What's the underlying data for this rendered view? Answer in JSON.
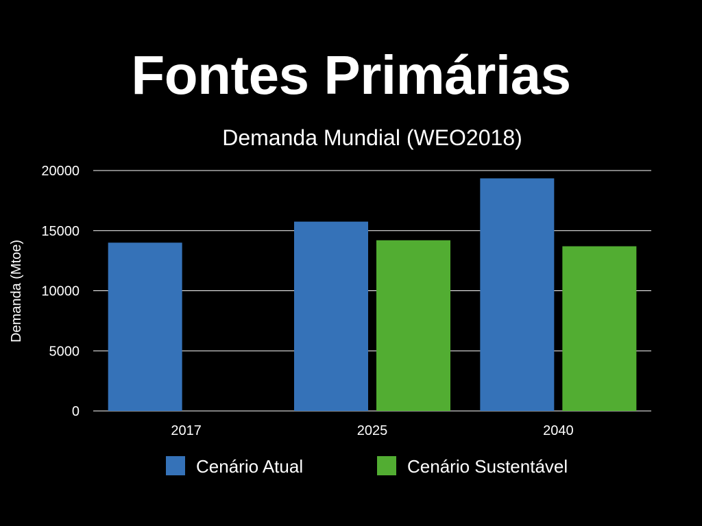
{
  "slide": {
    "title": "Fontes Primárias"
  },
  "chart_data": {
    "type": "bar",
    "title": "Demanda Mundial (WEO2018)",
    "xlabel": "",
    "ylabel": "Demanda (Mtoe)",
    "categories": [
      "2017",
      "2025",
      "2040"
    ],
    "series": [
      {
        "name": "Cenário Atual",
        "color": "#3572b8",
        "values": [
          14000,
          15750,
          19350
        ]
      },
      {
        "name": "Cenário Sustentável",
        "color": "#52ad32",
        "values": [
          null,
          14200,
          13700
        ]
      }
    ],
    "ylim": [
      0,
      20000
    ],
    "yticks": [
      0,
      5000,
      10000,
      15000,
      20000
    ],
    "grid": true,
    "legend": "bottom"
  }
}
